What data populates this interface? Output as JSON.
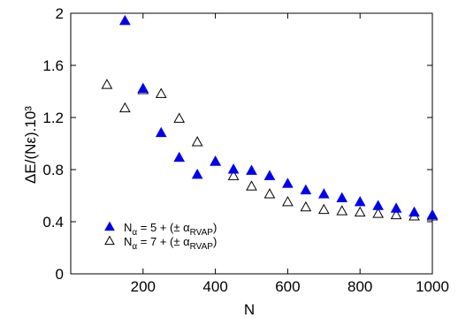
{
  "chart_data": {
    "type": "scatter",
    "xlabel": "N",
    "ylabel": "ΔE/(Nε).10³",
    "xlim": [
      0,
      1000
    ],
    "ylim": [
      0,
      2
    ],
    "xticks": [
      200,
      400,
      600,
      800,
      1000
    ],
    "yticks": [
      0,
      0.4,
      0.8,
      1.2,
      1.6,
      2
    ],
    "ytick_labels": [
      "0",
      "0.4",
      "0.8",
      "1.2",
      "1.6",
      "2"
    ],
    "grid": false,
    "legend_position": "bottom-left",
    "series": [
      {
        "name": "Nα = 5 + (± αRVAP)",
        "legend": {
          "base": "N",
          "sub1": "α",
          "mid": " = 5 + (± α",
          "sub2": "RVAP",
          "end": ")"
        },
        "marker": "filled-triangle",
        "color": "#0000ee",
        "x": [
          150,
          200,
          250,
          300,
          350,
          400,
          450,
          500,
          550,
          600,
          650,
          700,
          750,
          800,
          850,
          900,
          950,
          1000
        ],
        "y": [
          1.94,
          1.42,
          1.08,
          0.89,
          0.76,
          0.86,
          0.8,
          0.79,
          0.75,
          0.69,
          0.64,
          0.61,
          0.58,
          0.55,
          0.52,
          0.5,
          0.47,
          0.45
        ]
      },
      {
        "name": "Nα = 7 + (± αRVAP)",
        "legend": {
          "base": "N",
          "sub1": "α",
          "mid": " = 7 + (± α",
          "sub2": "RVAP",
          "end": ")"
        },
        "marker": "open-triangle",
        "color": "#000000",
        "x": [
          100,
          150,
          200,
          250,
          300,
          350,
          400,
          450,
          500,
          550,
          600,
          650,
          700,
          750,
          800,
          850,
          900,
          950,
          1000
        ],
        "y": [
          1.45,
          1.27,
          1.41,
          1.38,
          1.19,
          1.01,
          0.86,
          0.75,
          0.67,
          0.61,
          0.55,
          0.51,
          0.49,
          0.48,
          0.47,
          0.46,
          0.45,
          0.44,
          0.44
        ]
      }
    ]
  }
}
